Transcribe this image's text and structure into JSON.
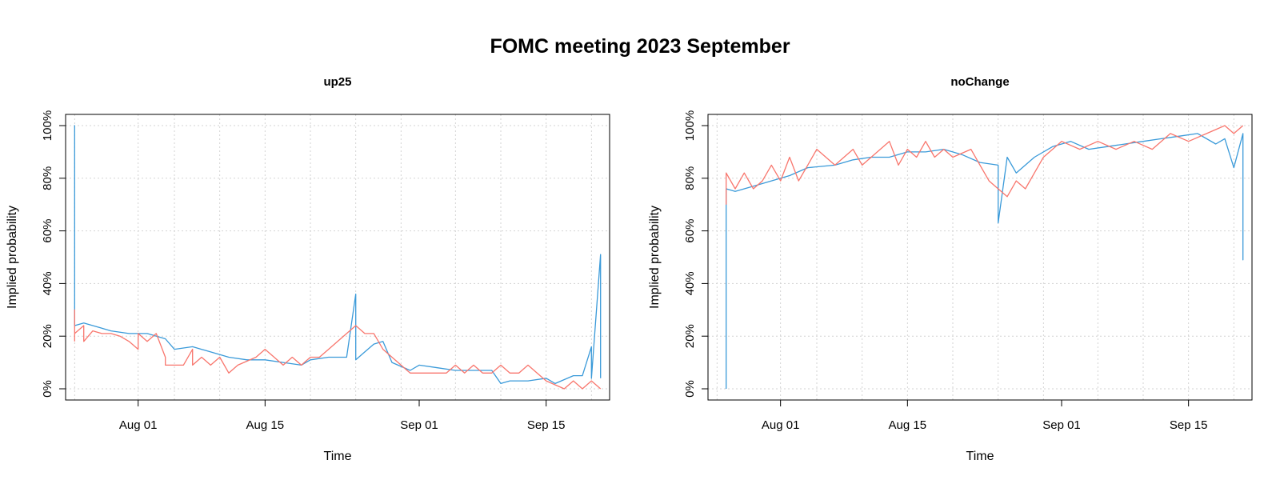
{
  "title": "FOMC meeting 2023 September",
  "colors": {
    "series_a": "#3a9ad9",
    "series_b": "#f8766d",
    "grid": "#d3d3d3"
  },
  "chart_data": [
    {
      "type": "line",
      "title": "up25",
      "xlabel": "Time",
      "ylabel": "Implied probability",
      "x_tick_labels": [
        "Aug 01",
        "Aug 15",
        "Sep 01",
        "Sep 15"
      ],
      "y_tick_labels": [
        "0%",
        "20%",
        "40%",
        "60%",
        "80%",
        "100%"
      ],
      "ylim": [
        0,
        1
      ],
      "xlim": [
        "2023-07-24",
        "2023-09-22"
      ],
      "grid": true,
      "series": [
        {
          "color": "#3a9ad9",
          "x": [
            "2023-07-25",
            "2023-07-25",
            "2023-07-25",
            "2023-07-26",
            "2023-07-27",
            "2023-07-29",
            "2023-07-31",
            "2023-08-02",
            "2023-08-04",
            "2023-08-05",
            "2023-08-07",
            "2023-08-09",
            "2023-08-11",
            "2023-08-13",
            "2023-08-15",
            "2023-08-17",
            "2023-08-19",
            "2023-08-20",
            "2023-08-22",
            "2023-08-24",
            "2023-08-25",
            "2023-08-25",
            "2023-08-26",
            "2023-08-27",
            "2023-08-28",
            "2023-08-29",
            "2023-08-31",
            "2023-09-01",
            "2023-09-03",
            "2023-09-05",
            "2023-09-07",
            "2023-09-09",
            "2023-09-10",
            "2023-09-11",
            "2023-09-13",
            "2023-09-15",
            "2023-09-16",
            "2023-09-18",
            "2023-09-19",
            "2023-09-20",
            "2023-09-20",
            "2023-09-21",
            "2023-09-21"
          ],
          "y": [
            0.25,
            1.0,
            0.24,
            0.25,
            0.24,
            0.22,
            0.21,
            0.21,
            0.19,
            0.15,
            0.16,
            0.14,
            0.12,
            0.11,
            0.11,
            0.1,
            0.09,
            0.11,
            0.12,
            0.12,
            0.36,
            0.11,
            0.14,
            0.17,
            0.18,
            0.1,
            0.07,
            0.09,
            0.08,
            0.07,
            0.07,
            0.07,
            0.02,
            0.03,
            0.03,
            0.04,
            0.02,
            0.05,
            0.05,
            0.16,
            0.04,
            0.51,
            0.04
          ]
        },
        {
          "color": "#f8766d",
          "x": [
            "2023-07-25",
            "2023-07-25",
            "2023-07-25",
            "2023-07-26",
            "2023-07-26",
            "2023-07-27",
            "2023-07-28",
            "2023-07-29",
            "2023-07-30",
            "2023-07-31",
            "2023-08-01",
            "2023-08-01",
            "2023-08-02",
            "2023-08-03",
            "2023-08-04",
            "2023-08-04",
            "2023-08-05",
            "2023-08-06",
            "2023-08-07",
            "2023-08-07",
            "2023-08-08",
            "2023-08-09",
            "2023-08-10",
            "2023-08-11",
            "2023-08-12",
            "2023-08-14",
            "2023-08-15",
            "2023-08-16",
            "2023-08-17",
            "2023-08-18",
            "2023-08-19",
            "2023-08-20",
            "2023-08-21",
            "2023-08-22",
            "2023-08-23",
            "2023-08-24",
            "2023-08-25",
            "2023-08-26",
            "2023-08-27",
            "2023-08-28",
            "2023-08-29",
            "2023-08-30",
            "2023-08-31",
            "2023-09-01",
            "2023-09-04",
            "2023-09-05",
            "2023-09-06",
            "2023-09-07",
            "2023-09-08",
            "2023-09-09",
            "2023-09-10",
            "2023-09-11",
            "2023-09-12",
            "2023-09-13",
            "2023-09-14",
            "2023-09-15",
            "2023-09-17",
            "2023-09-18",
            "2023-09-19",
            "2023-09-20",
            "2023-09-21"
          ],
          "y": [
            0.18,
            0.3,
            0.21,
            0.24,
            0.18,
            0.22,
            0.21,
            0.21,
            0.2,
            0.18,
            0.15,
            0.21,
            0.18,
            0.21,
            0.12,
            0.09,
            0.09,
            0.09,
            0.15,
            0.09,
            0.12,
            0.09,
            0.12,
            0.06,
            0.09,
            0.12,
            0.15,
            0.12,
            0.09,
            0.12,
            0.09,
            0.12,
            0.12,
            0.15,
            0.18,
            0.21,
            0.24,
            0.21,
            0.21,
            0.15,
            0.12,
            0.09,
            0.06,
            0.06,
            0.06,
            0.09,
            0.06,
            0.09,
            0.06,
            0.06,
            0.09,
            0.06,
            0.06,
            0.09,
            0.06,
            0.03,
            0.0,
            0.03,
            0.0,
            0.03,
            0.0
          ]
        }
      ]
    },
    {
      "type": "line",
      "title": "noChange",
      "xlabel": "Time",
      "ylabel": "Implied probability",
      "x_tick_labels": [
        "Aug 01",
        "Aug 15",
        "Sep 01",
        "Sep 15"
      ],
      "y_tick_labels": [
        "0%",
        "20%",
        "40%",
        "60%",
        "80%",
        "100%"
      ],
      "ylim": [
        0,
        1
      ],
      "xlim": [
        "2023-07-24",
        "2023-09-22"
      ],
      "grid": true,
      "series": [
        {
          "color": "#3a9ad9",
          "x": [
            "2023-07-26",
            "2023-07-26",
            "2023-07-27",
            "2023-07-29",
            "2023-07-31",
            "2023-08-02",
            "2023-08-04",
            "2023-08-07",
            "2023-08-09",
            "2023-08-11",
            "2023-08-13",
            "2023-08-15",
            "2023-08-17",
            "2023-08-19",
            "2023-08-21",
            "2023-08-23",
            "2023-08-25",
            "2023-08-25",
            "2023-08-26",
            "2023-08-27",
            "2023-08-29",
            "2023-08-31",
            "2023-09-02",
            "2023-09-04",
            "2023-09-06",
            "2023-09-08",
            "2023-09-10",
            "2023-09-12",
            "2023-09-14",
            "2023-09-16",
            "2023-09-18",
            "2023-09-19",
            "2023-09-20",
            "2023-09-21",
            "2023-09-21",
            "2023-09-21"
          ],
          "y": [
            0.0,
            0.76,
            0.75,
            0.77,
            0.79,
            0.81,
            0.84,
            0.85,
            0.87,
            0.88,
            0.88,
            0.9,
            0.9,
            0.91,
            0.89,
            0.86,
            0.85,
            0.63,
            0.88,
            0.82,
            0.88,
            0.92,
            0.94,
            0.91,
            0.92,
            0.93,
            0.94,
            0.95,
            0.96,
            0.97,
            0.93,
            0.95,
            0.84,
            0.97,
            0.49,
            0.97
          ]
        },
        {
          "color": "#f8766d",
          "x": [
            "2023-07-26",
            "2023-07-26",
            "2023-07-27",
            "2023-07-28",
            "2023-07-29",
            "2023-07-30",
            "2023-07-31",
            "2023-08-01",
            "2023-08-02",
            "2023-08-03",
            "2023-08-04",
            "2023-08-05",
            "2023-08-07",
            "2023-08-08",
            "2023-08-09",
            "2023-08-10",
            "2023-08-11",
            "2023-08-13",
            "2023-08-14",
            "2023-08-15",
            "2023-08-16",
            "2023-08-17",
            "2023-08-18",
            "2023-08-19",
            "2023-08-20",
            "2023-08-22",
            "2023-08-23",
            "2023-08-24",
            "2023-08-25",
            "2023-08-26",
            "2023-08-27",
            "2023-08-28",
            "2023-08-29",
            "2023-08-30",
            "2023-08-31",
            "2023-09-01",
            "2023-09-03",
            "2023-09-05",
            "2023-09-07",
            "2023-09-09",
            "2023-09-11",
            "2023-09-13",
            "2023-09-15",
            "2023-09-17",
            "2023-09-19",
            "2023-09-20",
            "2023-09-21"
          ],
          "y": [
            0.7,
            0.82,
            0.76,
            0.82,
            0.76,
            0.79,
            0.85,
            0.79,
            0.88,
            0.79,
            0.85,
            0.91,
            0.85,
            0.88,
            0.91,
            0.85,
            0.88,
            0.94,
            0.85,
            0.91,
            0.88,
            0.94,
            0.88,
            0.91,
            0.88,
            0.91,
            0.85,
            0.79,
            0.76,
            0.73,
            0.79,
            0.76,
            0.82,
            0.88,
            0.91,
            0.94,
            0.91,
            0.94,
            0.91,
            0.94,
            0.91,
            0.97,
            0.94,
            0.97,
            1.0,
            0.97,
            1.0
          ]
        }
      ]
    }
  ]
}
